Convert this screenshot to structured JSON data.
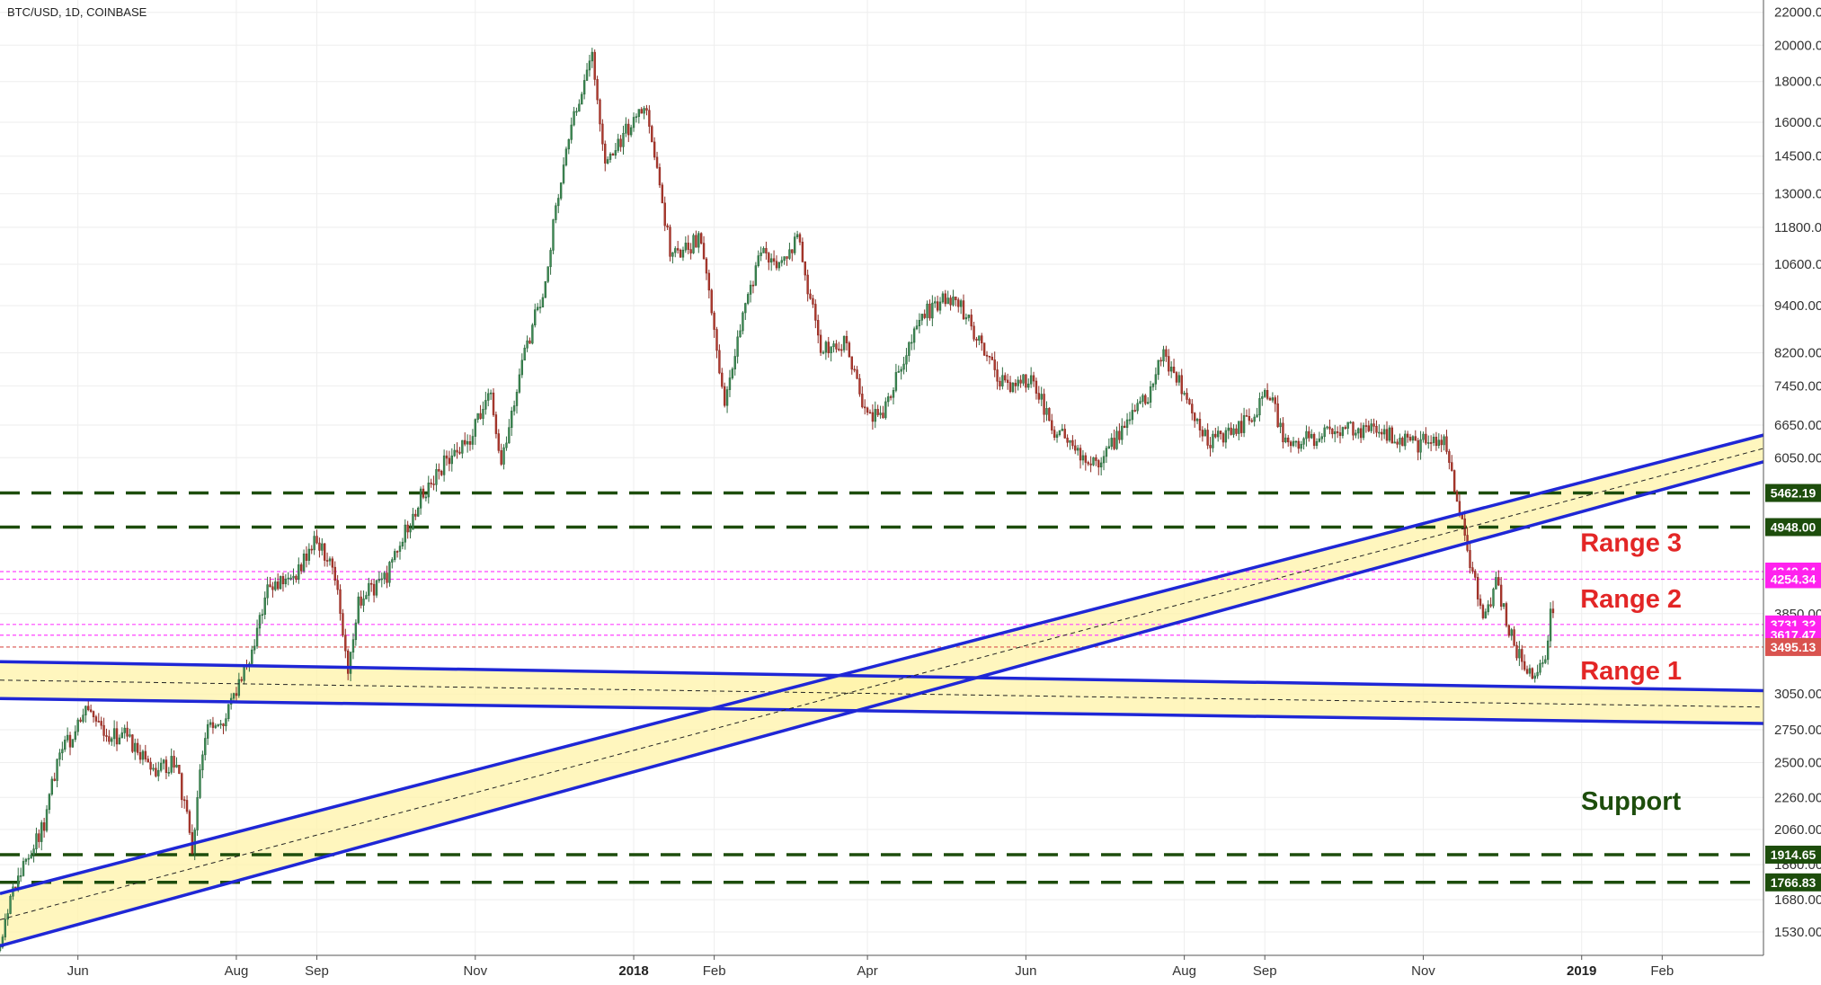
{
  "chart_data": {
    "type": "candlestick",
    "symbol_label": "BTC/USD, 1D, COINBASE",
    "y_scale": "log",
    "ylim": [
      1430,
      22800
    ],
    "x_range": [
      "2017-05-02",
      "2019-03-12"
    ],
    "y_ticks": [
      "22000.00",
      "20000.00",
      "18000.00",
      "16000.00",
      "14500.00",
      "13000.00",
      "11800.00",
      "10600.00",
      "9400.00",
      "8200.00",
      "7450.00",
      "6650.00",
      "6050.00",
      "3850.00",
      "3050.00",
      "2750.00",
      "2500.00",
      "2260.00",
      "2060.00",
      "1860.00",
      "1680.00",
      "1530.00"
    ],
    "x_ticks": [
      {
        "date": "2017-06-01",
        "label": "Jun",
        "bold": false
      },
      {
        "date": "2017-08-01",
        "label": "Aug",
        "bold": false
      },
      {
        "date": "2017-09-01",
        "label": "Sep",
        "bold": false
      },
      {
        "date": "2017-11-01",
        "label": "Nov",
        "bold": false
      },
      {
        "date": "2018-01-01",
        "label": "2018",
        "bold": true
      },
      {
        "date": "2018-02-01",
        "label": "Feb",
        "bold": false
      },
      {
        "date": "2018-04-01",
        "label": "Apr",
        "bold": false
      },
      {
        "date": "2018-06-01",
        "label": "Jun",
        "bold": false
      },
      {
        "date": "2018-08-01",
        "label": "Aug",
        "bold": false
      },
      {
        "date": "2018-09-01",
        "label": "Sep",
        "bold": false
      },
      {
        "date": "2018-11-01",
        "label": "Nov",
        "bold": false
      },
      {
        "date": "2019-01-01",
        "label": "2019",
        "bold": true
      },
      {
        "date": "2019-02-01",
        "label": "Feb",
        "bold": false
      }
    ],
    "price_path": [
      [
        "2017-05-02",
        1450
      ],
      [
        "2017-05-10",
        1800
      ],
      [
        "2017-05-20",
        2100
      ],
      [
        "2017-05-25",
        2500
      ],
      [
        "2017-06-06",
        2950
      ],
      [
        "2017-06-12",
        2700
      ],
      [
        "2017-06-20",
        2700
      ],
      [
        "2017-07-01",
        2450
      ],
      [
        "2017-07-10",
        2500
      ],
      [
        "2017-07-16",
        1950
      ],
      [
        "2017-07-21",
        2750
      ],
      [
        "2017-07-28",
        2800
      ],
      [
        "2017-08-06",
        3300
      ],
      [
        "2017-08-15",
        4200
      ],
      [
        "2017-08-25",
        4300
      ],
      [
        "2017-09-01",
        4800
      ],
      [
        "2017-09-09",
        4300
      ],
      [
        "2017-09-14",
        3200
      ],
      [
        "2017-09-18",
        4000
      ],
      [
        "2017-09-29",
        4300
      ],
      [
        "2017-10-12",
        5400
      ],
      [
        "2017-10-20",
        5900
      ],
      [
        "2017-10-31",
        6400
      ],
      [
        "2017-11-08",
        7400
      ],
      [
        "2017-11-12",
        5900
      ],
      [
        "2017-11-20",
        8000
      ],
      [
        "2017-11-28",
        9800
      ],
      [
        "2017-12-07",
        15000
      ],
      [
        "2017-12-12",
        17000
      ],
      [
        "2017-12-17",
        19500
      ],
      [
        "2017-12-22",
        14000
      ],
      [
        "2017-12-27",
        15000
      ],
      [
        "2018-01-06",
        17000
      ],
      [
        "2018-01-11",
        14000
      ],
      [
        "2018-01-16",
        11000
      ],
      [
        "2018-01-22",
        11000
      ],
      [
        "2018-01-28",
        11500
      ],
      [
        "2018-02-06",
        7000
      ],
      [
        "2018-02-14",
        9500
      ],
      [
        "2018-02-20",
        11000
      ],
      [
        "2018-02-28",
        10500
      ],
      [
        "2018-03-06",
        11500
      ],
      [
        "2018-03-15",
        8300
      ],
      [
        "2018-03-25",
        8500
      ],
      [
        "2018-04-01",
        6900
      ],
      [
        "2018-04-08",
        6800
      ],
      [
        "2018-04-15",
        8000
      ],
      [
        "2018-04-24",
        9200
      ],
      [
        "2018-05-05",
        9700
      ],
      [
        "2018-05-15",
        8500
      ],
      [
        "2018-05-25",
        7400
      ],
      [
        "2018-06-05",
        7600
      ],
      [
        "2018-06-12",
        6600
      ],
      [
        "2018-06-29",
        5900
      ],
      [
        "2018-07-10",
        6600
      ],
      [
        "2018-07-20",
        7300
      ],
      [
        "2018-07-25",
        8200
      ],
      [
        "2018-08-05",
        7000
      ],
      [
        "2018-08-12",
        6300
      ],
      [
        "2018-08-25",
        6700
      ],
      [
        "2018-09-04",
        7300
      ],
      [
        "2018-09-10",
        6300
      ],
      [
        "2018-09-20",
        6400
      ],
      [
        "2018-10-01",
        6600
      ],
      [
        "2018-10-15",
        6500
      ],
      [
        "2018-10-31",
        6300
      ],
      [
        "2018-11-10",
        6400
      ],
      [
        "2018-11-14",
        5600
      ],
      [
        "2018-11-20",
        4500
      ],
      [
        "2018-11-25",
        3800
      ],
      [
        "2018-11-30",
        4200
      ],
      [
        "2018-12-07",
        3500
      ],
      [
        "2018-12-14",
        3200
      ],
      [
        "2018-12-19",
        3300
      ],
      [
        "2018-12-21",
        3900
      ]
    ],
    "horizontal_levels": [
      {
        "price": 5462.19,
        "label": "5462.19",
        "style": "dashed",
        "color": "#1d4d0c"
      },
      {
        "price": 4948.0,
        "label": "4948.00",
        "style": "dashed",
        "color": "#1d4d0c"
      },
      {
        "price": 4349.24,
        "label": "4349.24",
        "style": "dotted",
        "color": "#ff44ff"
      },
      {
        "price": 4254.34,
        "label": "4254.34",
        "style": "dotted",
        "color": "#ff44ff"
      },
      {
        "price": 3731.32,
        "label": "3731.32",
        "style": "dotted",
        "color": "#ff44ff"
      },
      {
        "price": 3617.47,
        "label": "3617.47",
        "style": "dotted",
        "color": "#ff44ff"
      },
      {
        "price": 3495.13,
        "label": "3495.13",
        "style": "dotted",
        "color": "#d9534f"
      },
      {
        "price": 1914.65,
        "label": "1914.65",
        "style": "dashed",
        "color": "#1d4d0c"
      },
      {
        "price": 1766.83,
        "label": "1766.83",
        "style": "dashed",
        "color": "#1d4d0c"
      }
    ],
    "channels": [
      {
        "name": "horizontal-channel",
        "upper": [
          [
            "2017-05-02",
            3350
          ],
          [
            "2019-03-12",
            3080
          ]
        ],
        "lower": [
          [
            "2017-05-02",
            3010
          ],
          [
            "2019-03-12",
            2800
          ]
        ],
        "color": "#1f27d6"
      },
      {
        "name": "ascending-channel",
        "upper": [
          [
            "2017-05-02",
            1710
          ],
          [
            "2019-03-12",
            6460
          ]
        ],
        "lower": [
          [
            "2017-05-02",
            1470
          ],
          [
            "2019-03-12",
            5980
          ]
        ],
        "color": "#1f27d6"
      }
    ],
    "annotations": [
      {
        "text": "Range 3",
        "color": "#e32626",
        "anchor_price": 4610,
        "anchor_date": "2019-01-20"
      },
      {
        "text": "Range 2",
        "color": "#e32626",
        "anchor_price": 3920,
        "anchor_date": "2019-01-20"
      },
      {
        "text": "Range 1",
        "color": "#e32626",
        "anchor_price": 3180,
        "anchor_date": "2019-01-20"
      },
      {
        "text": "Support",
        "color": "#1d4d0c",
        "anchor_price": 2180,
        "anchor_date": "2019-01-20"
      }
    ],
    "colors": {
      "up": "#26a69a",
      "up_body": "#3d8b55",
      "down": "#c0392b",
      "down_body": "#b03a2e",
      "grid": "#eeeeee",
      "axis": "#555555",
      "badge_green": "#1d4d0c",
      "badge_magenta": "#ff22ee",
      "badge_red": "#d9534f",
      "channel_fill": "#fff3a8"
    }
  }
}
